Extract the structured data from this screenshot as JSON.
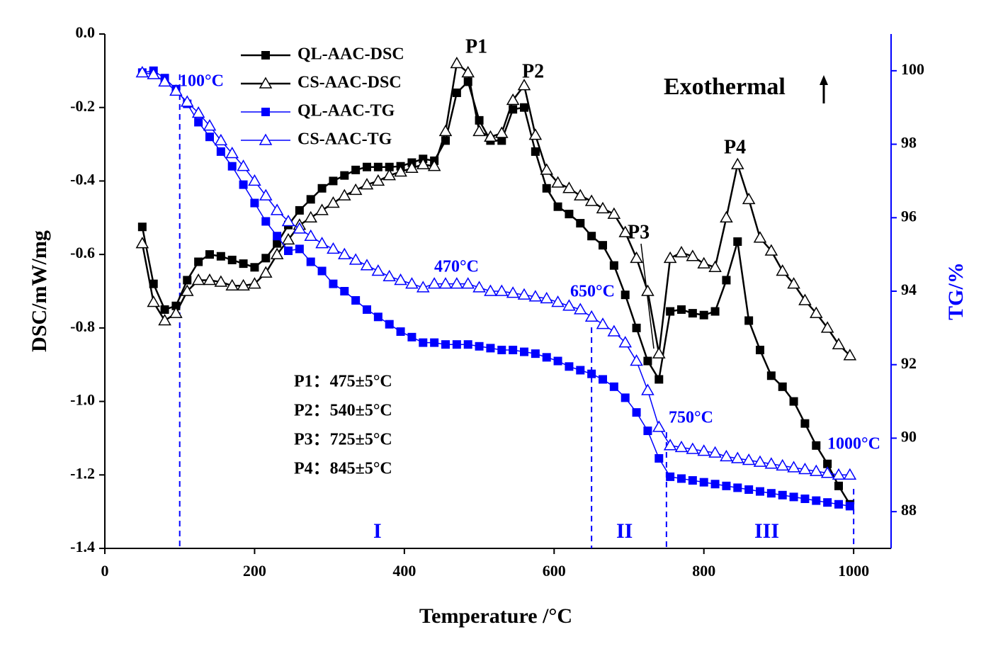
{
  "chart_data": {
    "type": "line",
    "x_label": "Temperature /°C",
    "y_label": "DSC/mW/mg",
    "y2_label": "TG/%",
    "xlim": [
      0,
      1050
    ],
    "xticks": [
      0,
      200,
      400,
      600,
      800,
      1000
    ],
    "ylim": [
      -1.4,
      0
    ],
    "yticks": [
      -1.4,
      -1.2,
      {
        "value": -1.0,
        "label": "-1.0"
      },
      -0.8,
      -0.6,
      -0.4,
      -0.2,
      {
        "value": 0,
        "label": "0.0"
      }
    ],
    "y2lim": [
      87,
      101
    ],
    "y2ticks": [
      88,
      90,
      92,
      94,
      96,
      98,
      100
    ],
    "x": [
      50,
      65,
      80,
      95,
      110,
      125,
      140,
      155,
      170,
      185,
      200,
      215,
      230,
      245,
      260,
      275,
      290,
      305,
      320,
      335,
      350,
      365,
      380,
      395,
      410,
      425,
      440,
      455,
      470,
      485,
      500,
      515,
      530,
      545,
      560,
      575,
      590,
      605,
      620,
      635,
      650,
      665,
      680,
      695,
      710,
      725,
      740,
      755,
      770,
      785,
      800,
      815,
      830,
      845,
      860,
      875,
      890,
      905,
      920,
      935,
      950,
      965,
      980,
      995
    ],
    "series": [
      {
        "name": "QL-AAC-DSC",
        "color": "#000000",
        "marker": "square",
        "values": [
          -0.525,
          -0.68,
          -0.75,
          -0.74,
          -0.67,
          -0.62,
          -0.6,
          -0.605,
          -0.615,
          -0.625,
          -0.635,
          -0.61,
          -0.57,
          -0.52,
          -0.48,
          -0.45,
          -0.42,
          -0.4,
          -0.385,
          -0.37,
          -0.362,
          -0.362,
          -0.362,
          -0.36,
          -0.35,
          -0.34,
          -0.345,
          -0.29,
          -0.16,
          -0.13,
          -0.235,
          -0.29,
          -0.29,
          -0.205,
          -0.2,
          -0.32,
          -0.42,
          -0.47,
          -0.49,
          -0.515,
          -0.55,
          -0.575,
          -0.63,
          -0.71,
          -0.8,
          -0.89,
          -0.94,
          -0.755,
          -0.75,
          -0.76,
          -0.765,
          -0.755,
          -0.67,
          -0.565,
          -0.78,
          -0.86,
          -0.93,
          -0.96,
          -1.0,
          -1.06,
          -1.12,
          -1.17,
          -1.23,
          -1.28
        ]
      },
      {
        "name": "CS-AAC-DSC",
        "color": "#000000",
        "marker": "triangle",
        "values": [
          -0.57,
          -0.73,
          -0.78,
          -0.76,
          -0.7,
          -0.67,
          -0.67,
          -0.675,
          -0.685,
          -0.685,
          -0.68,
          -0.65,
          -0.6,
          -0.56,
          -0.52,
          -0.5,
          -0.48,
          -0.46,
          -0.44,
          -0.425,
          -0.41,
          -0.4,
          -0.385,
          -0.375,
          -0.365,
          -0.355,
          -0.36,
          -0.265,
          -0.08,
          -0.105,
          -0.265,
          -0.28,
          -0.27,
          -0.18,
          -0.14,
          -0.275,
          -0.37,
          -0.405,
          -0.42,
          -0.44,
          -0.455,
          -0.475,
          -0.49,
          -0.54,
          -0.61,
          -0.7,
          -0.87,
          -0.61,
          -0.595,
          -0.605,
          -0.625,
          -0.635,
          -0.5,
          -0.355,
          -0.45,
          -0.555,
          -0.59,
          -0.645,
          -0.68,
          -0.725,
          -0.76,
          -0.8,
          -0.845,
          -0.875
        ]
      },
      {
        "name": "QL-AAC-TG",
        "color": "#0000ff",
        "marker": "square",
        "axis": "y2",
        "values": [
          99.95,
          100.0,
          99.8,
          99.5,
          99.1,
          98.6,
          98.2,
          97.8,
          97.4,
          96.9,
          96.4,
          95.9,
          95.5,
          95.1,
          95.15,
          94.8,
          94.55,
          94.2,
          94.0,
          93.75,
          93.5,
          93.3,
          93.1,
          92.9,
          92.75,
          92.6,
          92.6,
          92.55,
          92.55,
          92.55,
          92.5,
          92.45,
          92.4,
          92.4,
          92.35,
          92.3,
          92.2,
          92.1,
          91.95,
          91.85,
          91.75,
          91.6,
          91.4,
          91.1,
          90.7,
          90.2,
          89.45,
          88.95,
          88.9,
          88.85,
          88.8,
          88.75,
          88.7,
          88.65,
          88.6,
          88.55,
          88.5,
          88.45,
          88.4,
          88.35,
          88.3,
          88.25,
          88.2,
          88.15
        ]
      },
      {
        "name": "CS-AAC-TG",
        "color": "#0000ff",
        "marker": "triangle",
        "axis": "y2",
        "values": [
          99.95,
          99.9,
          99.7,
          99.45,
          99.15,
          98.85,
          98.5,
          98.1,
          97.75,
          97.4,
          97.0,
          96.6,
          96.2,
          95.9,
          95.7,
          95.5,
          95.3,
          95.15,
          95.0,
          94.85,
          94.7,
          94.55,
          94.4,
          94.3,
          94.2,
          94.1,
          94.2,
          94.2,
          94.2,
          94.2,
          94.1,
          94.0,
          94.0,
          93.95,
          93.9,
          93.85,
          93.8,
          93.7,
          93.6,
          93.5,
          93.3,
          93.1,
          92.9,
          92.6,
          92.1,
          91.3,
          90.3,
          89.8,
          89.75,
          89.7,
          89.65,
          89.6,
          89.5,
          89.45,
          89.4,
          89.35,
          89.3,
          89.25,
          89.2,
          89.15,
          89.1,
          89.05,
          89.0,
          89.0
        ]
      }
    ],
    "vlines": [
      100,
      650,
      750,
      1000
    ],
    "annotations": [
      "100°C",
      "470°C",
      "650°C",
      "750°C",
      "1000°C",
      "P1",
      "P2",
      "P3",
      "P4",
      "I",
      "II",
      "III",
      "Exothermal"
    ],
    "peaks": [
      "P1：475±5°C",
      "P2：540±5°C",
      "P3：725±5°C",
      "P4：845±5°C"
    ]
  }
}
